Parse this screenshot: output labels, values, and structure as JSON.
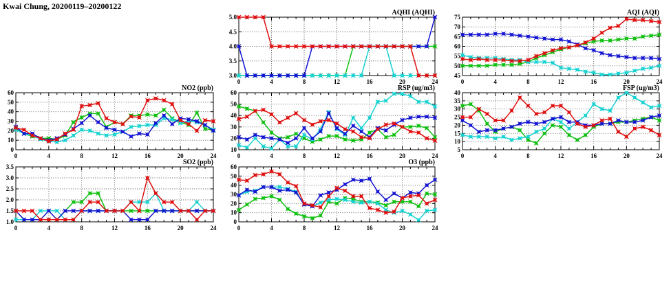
{
  "title": "Kwai Chung, 20200119–20200122",
  "colors": {
    "red": "#e01010",
    "green": "#10c010",
    "blue": "#1414d2",
    "cyan": "#18d2d2"
  },
  "chart_data": [
    {
      "id": "aqhi",
      "type": "line",
      "title": "AQHI (AQHI)",
      "xlim": [
        0,
        24
      ],
      "xticks": [
        0,
        4,
        8,
        12,
        16,
        20,
        24
      ],
      "x_start": 0,
      "x_step": 1,
      "ylim": [
        3.0,
        5.0
      ],
      "ytick_values": [
        3.0,
        3.5,
        4.0,
        4.5,
        5.0
      ],
      "ytick_labels": [
        "3.0",
        "3.5",
        "4.0",
        "4.5",
        "5.0"
      ],
      "series": [
        {
          "name": "green",
          "values": [
            3,
            3,
            3,
            3,
            3,
            3,
            3,
            3,
            3,
            3,
            3,
            3,
            3,
            3,
            4,
            4,
            4,
            4,
            4,
            4,
            4,
            4,
            4,
            4,
            4
          ]
        },
        {
          "name": "cyan",
          "values": [
            3,
            3,
            3,
            3,
            3,
            3,
            3,
            3,
            3,
            3,
            3,
            3,
            3,
            3,
            3,
            3,
            4,
            4,
            4,
            3,
            3,
            3,
            3,
            3,
            3
          ]
        },
        {
          "name": "blue",
          "values": [
            4,
            3,
            3,
            3,
            3,
            3,
            3,
            3,
            3,
            4,
            4,
            4,
            4,
            4,
            4,
            4,
            4,
            4,
            4,
            4,
            4,
            4,
            4,
            4,
            5
          ]
        },
        {
          "name": "red",
          "values": [
            5,
            5,
            5,
            5,
            4,
            4,
            4,
            4,
            4,
            4,
            4,
            4,
            4,
            4,
            4,
            4,
            4,
            4,
            4,
            4,
            4,
            4,
            3,
            3,
            3
          ]
        }
      ]
    },
    {
      "id": "aqi",
      "type": "line",
      "title": "AQI (AQI)",
      "xlim": [
        0,
        24
      ],
      "xticks": [
        0,
        4,
        8,
        12,
        16,
        20,
        24
      ],
      "x_start": 0,
      "x_step": 1,
      "ylim": [
        45,
        75
      ],
      "ytick_values": [
        45,
        50,
        55,
        60,
        65,
        70,
        75
      ],
      "ytick_labels": [
        "45",
        "50",
        "55",
        "60",
        "65",
        "70",
        "75"
      ],
      "series": [
        {
          "name": "green",
          "values": [
            50,
            50,
            50,
            50,
            50.5,
            50.5,
            50.5,
            51,
            52,
            54,
            55.5,
            57,
            58.5,
            59.5,
            60.5,
            61.5,
            62.5,
            63,
            63,
            63.5,
            64,
            64,
            65,
            65.5,
            66
          ]
        },
        {
          "name": "cyan",
          "values": [
            55.5,
            54.5,
            54,
            54,
            54,
            53.5,
            53,
            53,
            52,
            52,
            52,
            51.5,
            49,
            48.5,
            48,
            47,
            46.5,
            45.5,
            45.5,
            46,
            46.5,
            47.5,
            48.5,
            49,
            50
          ]
        },
        {
          "name": "blue",
          "values": [
            66,
            66,
            66,
            66,
            66.5,
            66.5,
            66,
            65.5,
            65,
            64.5,
            64,
            63.5,
            63.5,
            62.5,
            61,
            59,
            58,
            56.5,
            55.5,
            55,
            54.5,
            54,
            54,
            54,
            53.5
          ]
        },
        {
          "name": "red",
          "values": [
            53.5,
            53,
            53.5,
            53,
            53,
            53,
            52.5,
            52.5,
            53,
            55,
            56.5,
            58,
            59,
            59.5,
            60.5,
            62,
            64,
            67,
            69.5,
            70.5,
            74,
            73.5,
            73.5,
            73,
            72.5
          ]
        }
      ]
    },
    {
      "id": "no2",
      "type": "line",
      "title": "NO2 (ppb)",
      "xlim": [
        0,
        24
      ],
      "xticks": [
        0,
        4,
        8,
        12,
        16,
        20,
        24
      ],
      "x_start": 0,
      "x_step": 1,
      "ylim": [
        0,
        60
      ],
      "ytick_values": [
        0,
        10,
        20,
        30,
        40,
        50,
        60
      ],
      "ytick_labels": [
        "0",
        "10",
        "20",
        "30",
        "40",
        "50",
        "60"
      ],
      "series": [
        {
          "name": "green",
          "values": [
            22,
            17,
            14,
            12,
            12,
            11,
            15,
            29,
            34,
            38,
            38,
            24,
            29,
            27,
            36,
            36,
            37,
            36,
            42,
            33,
            29,
            26,
            39,
            22,
            21
          ]
        },
        {
          "name": "cyan",
          "values": [
            21,
            17,
            15,
            11,
            9,
            8,
            10,
            15,
            21,
            20,
            17,
            15,
            16,
            19,
            24,
            25,
            26,
            26,
            33,
            32,
            28,
            30,
            29,
            26,
            21
          ]
        },
        {
          "name": "blue",
          "values": [
            24,
            17,
            17,
            12,
            10,
            12,
            16,
            22,
            28,
            36,
            29,
            23,
            21,
            19,
            14,
            17,
            16,
            28,
            36,
            27,
            33,
            32,
            30,
            26,
            20
          ]
        },
        {
          "name": "red",
          "values": [
            23,
            21,
            15,
            12,
            9,
            11,
            17,
            21,
            46,
            47,
            49,
            33,
            29,
            27,
            35,
            34,
            52,
            54,
            52,
            48,
            31,
            27,
            20,
            31,
            30
          ]
        }
      ]
    },
    {
      "id": "rsp",
      "type": "line",
      "title": "RSP (ug/m3)",
      "xlim": [
        0,
        24
      ],
      "xticks": [
        0,
        4,
        8,
        12,
        16,
        20,
        24
      ],
      "x_start": 0,
      "x_step": 1,
      "ylim": [
        10,
        60
      ],
      "ytick_values": [
        10,
        20,
        30,
        40,
        50,
        60
      ],
      "ytick_labels": [
        "10",
        "20",
        "30",
        "40",
        "50",
        "60"
      ],
      "series": [
        {
          "name": "green",
          "values": [
            48,
            46,
            44,
            34,
            25,
            20,
            21,
            24,
            20,
            17,
            19,
            22,
            22,
            19,
            18,
            19,
            25,
            28,
            21,
            23,
            30,
            30,
            31,
            29,
            21
          ]
        },
        {
          "name": "cyan",
          "values": [
            14,
            12,
            20,
            13,
            11,
            19,
            13,
            13,
            23,
            19,
            28,
            43,
            28,
            23,
            38,
            29,
            38,
            52,
            53,
            59,
            59,
            57,
            52,
            52,
            48
          ]
        },
        {
          "name": "blue",
          "values": [
            21,
            19,
            23,
            21,
            20,
            19,
            16,
            20,
            29,
            20,
            26,
            42,
            29,
            24,
            31,
            26,
            21,
            29,
            27,
            32,
            36,
            38,
            39,
            39,
            38
          ]
        },
        {
          "name": "red",
          "values": [
            37,
            39,
            44,
            45,
            41,
            34,
            38,
            42,
            36,
            32,
            35,
            36,
            33,
            28,
            26,
            21,
            20,
            28,
            32,
            33,
            30,
            26,
            25,
            20,
            18
          ]
        }
      ]
    },
    {
      "id": "fsp",
      "type": "line",
      "title": "FSP (ug/m3)",
      "xlim": [
        0,
        24
      ],
      "xticks": [
        0,
        4,
        8,
        12,
        16,
        20,
        24
      ],
      "x_start": 0,
      "x_step": 1,
      "ylim": [
        5,
        40
      ],
      "ytick_values": [
        5,
        10,
        15,
        20,
        25,
        30,
        35,
        40
      ],
      "ytick_labels": [
        "5",
        "10",
        "15",
        "20",
        "25",
        "30",
        "35",
        "40"
      ],
      "series": [
        {
          "name": "green",
          "values": [
            32,
            33,
            29,
            21,
            16,
            18,
            19,
            17,
            11,
            9,
            15,
            20,
            19,
            14,
            11,
            14,
            19,
            21,
            21,
            22,
            22,
            23,
            24,
            25,
            23
          ]
        },
        {
          "name": "cyan",
          "values": [
            14,
            13,
            13,
            13,
            12,
            13,
            11,
            12,
            13,
            16,
            18,
            24,
            22,
            18,
            22,
            26,
            33,
            30,
            29,
            37,
            40,
            37,
            34,
            31,
            32
          ]
        },
        {
          "name": "blue",
          "values": [
            23,
            20,
            16,
            17,
            17,
            18,
            19,
            21,
            22,
            21,
            22,
            24,
            25,
            22,
            22,
            20,
            20,
            21,
            21,
            23,
            22,
            22,
            23,
            25,
            26
          ]
        },
        {
          "name": "red",
          "values": [
            25,
            25,
            30,
            27,
            23,
            23,
            29,
            37,
            32,
            27,
            28,
            32,
            32,
            28,
            21,
            19,
            20,
            23,
            24,
            16,
            13,
            18,
            19,
            17,
            14
          ]
        }
      ]
    },
    {
      "id": "so2",
      "type": "line",
      "title": "SO2 (ppb)",
      "xlim": [
        0,
        24
      ],
      "xticks": [
        0,
        4,
        8,
        12,
        16,
        20,
        24
      ],
      "x_start": 0,
      "x_step": 1,
      "ylim": [
        1.0,
        3.5
      ],
      "ytick_values": [
        1.0,
        1.5,
        2.0,
        2.5,
        3.0,
        3.5
      ],
      "ytick_labels": [
        "1.0",
        "1.5",
        "2.0",
        "2.5",
        "3.0",
        "3.5"
      ],
      "series": [
        {
          "name": "green",
          "values": [
            1.5,
            1.1,
            1.1,
            1.1,
            1.1,
            1.1,
            1.5,
            1.9,
            1.9,
            2.3,
            2.3,
            1.5,
            1.5,
            1.5,
            1.5,
            1.5,
            1.5,
            1.5,
            1.5,
            1.5,
            1.5,
            1.5,
            1.5,
            1.5,
            1.5
          ]
        },
        {
          "name": "cyan",
          "values": [
            1.1,
            1.1,
            1.1,
            1.5,
            1.5,
            1.5,
            1.1,
            1.1,
            1.5,
            1.5,
            1.5,
            1.5,
            1.5,
            1.5,
            1.9,
            1.9,
            1.9,
            2.3,
            1.5,
            1.5,
            1.5,
            1.5,
            1.9,
            1.5,
            1.5
          ]
        },
        {
          "name": "blue",
          "values": [
            1.5,
            1.1,
            1.1,
            1.1,
            1.5,
            1.1,
            1.5,
            1.5,
            1.5,
            1.5,
            1.5,
            1.5,
            1.5,
            1.5,
            1.1,
            1.1,
            1.1,
            1.5,
            1.5,
            1.5,
            1.5,
            1.5,
            1.5,
            1.5,
            1.5
          ]
        },
        {
          "name": "red",
          "values": [
            1.5,
            1.5,
            1.5,
            1.1,
            1.1,
            1.1,
            1.1,
            1.1,
            1.5,
            1.9,
            1.9,
            1.5,
            1.5,
            1.5,
            1.9,
            1.5,
            3.0,
            2.3,
            1.9,
            1.9,
            1.5,
            1.5,
            1.1,
            1.5,
            1.5
          ]
        }
      ]
    },
    {
      "id": "o3",
      "type": "line",
      "title": "O3 (ppb)",
      "xlim": [
        0,
        24
      ],
      "xticks": [
        0,
        4,
        8,
        12,
        16,
        20,
        24
      ],
      "x_start": 0,
      "x_step": 1,
      "ylim": [
        0,
        60
      ],
      "ytick_values": [
        0,
        10,
        20,
        30,
        40,
        50,
        60
      ],
      "ytick_labels": [
        "0",
        "10",
        "20",
        "30",
        "40",
        "50",
        "60"
      ],
      "series": [
        {
          "name": "green",
          "values": [
            13,
            19,
            25,
            26,
            28,
            24,
            14,
            9,
            6,
            4,
            7,
            22,
            20,
            26,
            25,
            22,
            22,
            21,
            18,
            22,
            22,
            22,
            17,
            31,
            30
          ]
        },
        {
          "name": "cyan",
          "values": [
            29,
            33,
            34,
            38,
            38,
            38,
            36,
            33,
            19,
            17,
            21,
            24,
            25,
            24,
            22,
            21,
            22,
            20,
            13,
            10,
            12,
            8,
            2,
            12,
            13
          ]
        },
        {
          "name": "blue",
          "values": [
            29,
            35,
            33,
            38,
            38,
            34,
            35,
            32,
            19,
            17,
            29,
            32,
            35,
            41,
            46,
            45,
            47,
            33,
            24,
            31,
            26,
            32,
            31,
            40,
            46
          ]
        },
        {
          "name": "red",
          "values": [
            46,
            45,
            51,
            52,
            55,
            52,
            43,
            39,
            20,
            18,
            16,
            28,
            37,
            34,
            28,
            28,
            15,
            13,
            10,
            11,
            26,
            28,
            29,
            20,
            24
          ]
        }
      ]
    }
  ]
}
